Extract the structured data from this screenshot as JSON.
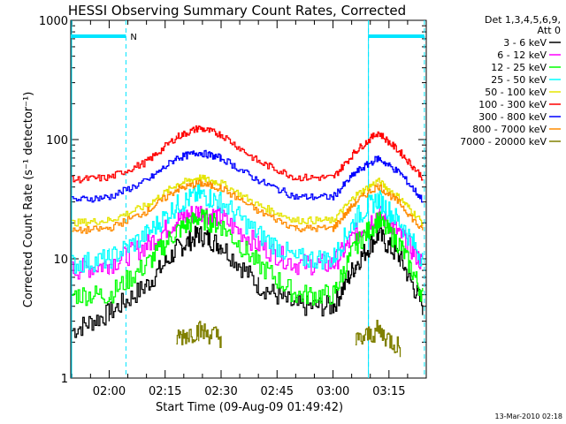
{
  "chart_data": {
    "type": "line",
    "title": "HESSI Observing Summary Count Rates, Corrected",
    "xlabel": "Start Time (09-Aug-09 01:49:42)",
    "ylabel": "Corrected Count Rate (s⁻¹ detector⁻¹)",
    "yscale": "log",
    "ylim": [
      1,
      1000
    ],
    "xlim": [
      "01:49:42",
      "03:25:00"
    ],
    "x_ticks": [
      "02:00",
      "02:15",
      "02:30",
      "02:45",
      "03:00",
      "03:15"
    ],
    "y_ticks": [
      "1",
      "10",
      "100",
      "1000"
    ],
    "legend_header": [
      "Det 1,3,4,5,6,9,",
      "Att 0"
    ],
    "legend_position": "right",
    "grid": false,
    "annotations": {
      "night_marker": "N",
      "night_intervals": [
        [
          "01:49:42",
          "02:04:30"
        ],
        [
          "03:09:30",
          "03:24:30"
        ]
      ],
      "saa_boundaries": [
        "03:09:30"
      ]
    },
    "x": [
      "01:50",
      "02:00",
      "02:10",
      "02:18",
      "02:24",
      "02:30",
      "02:40",
      "02:50",
      "03:00",
      "03:06",
      "03:12",
      "03:18",
      "03:24"
    ],
    "series": [
      {
        "name": "3 - 6 keV",
        "color": "#000000",
        "values": [
          2.5,
          3.5,
          6,
          12,
          16,
          13,
          6,
          4,
          4,
          9,
          16,
          10,
          4
        ]
      },
      {
        "name": "6 - 12 keV",
        "color": "#ff00ff",
        "values": [
          8,
          9,
          13,
          21,
          25,
          22,
          13,
          9,
          9,
          16,
          24,
          16,
          9
        ]
      },
      {
        "name": "12 - 25 keV",
        "color": "#00ff00",
        "values": [
          5,
          5,
          9,
          17,
          22,
          19,
          9,
          5,
          5,
          13,
          21,
          13,
          5
        ]
      },
      {
        "name": "25 - 50 keV",
        "color": "#00ffff",
        "values": [
          9,
          10,
          16,
          28,
          35,
          30,
          16,
          10,
          10,
          22,
          32,
          20,
          10
        ]
      },
      {
        "name": "50 - 100 keV",
        "color": "#e5e500",
        "values": [
          20,
          21,
          28,
          42,
          48,
          43,
          28,
          21,
          21,
          34,
          45,
          32,
          20
        ]
      },
      {
        "name": "100 - 300 keV",
        "color": "#ff0000",
        "values": [
          46,
          48,
          65,
          105,
          125,
          110,
          65,
          48,
          48,
          80,
          115,
          78,
          48
        ]
      },
      {
        "name": "300 - 800 keV",
        "color": "#0000ff",
        "values": [
          31,
          33,
          45,
          70,
          78,
          70,
          45,
          33,
          33,
          53,
          70,
          52,
          31
        ]
      },
      {
        "name": "800 - 7000 keV",
        "color": "#ff8c00",
        "values": [
          17,
          18,
          25,
          38,
          43,
          39,
          25,
          18,
          18,
          30,
          41,
          29,
          17
        ]
      },
      {
        "name": "7000 - 20000 keV",
        "color": "#808000",
        "values": [
          null,
          null,
          null,
          2.2,
          2.5,
          2.2,
          null,
          null,
          null,
          2.0,
          2.5,
          1.8,
          null
        ]
      }
    ]
  },
  "footer": {
    "timestamp": "13-Mar-2010 02:18"
  }
}
